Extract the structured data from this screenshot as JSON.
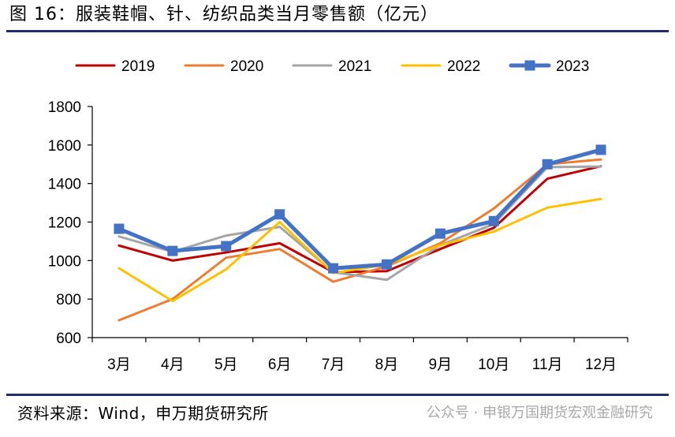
{
  "figure": {
    "title": "图 16：服装鞋帽、针、纺织品类当月零售额（亿元）",
    "source": "资料来源：Wind，申万期货研究所",
    "watermark": "公众号 · 申银万国期货宏观金融研究"
  },
  "chart_data": {
    "type": "line",
    "title": "",
    "xlabel": "",
    "ylabel": "",
    "categories": [
      "3月",
      "4月",
      "5月",
      "6月",
      "7月",
      "8月",
      "9月",
      "10月",
      "11月",
      "12月"
    ],
    "ylim": [
      600,
      1800
    ],
    "yticks": [
      600,
      800,
      1000,
      1200,
      1400,
      1600,
      1800
    ],
    "grid": false,
    "legend_position": "top",
    "series": [
      {
        "name": "2019",
        "color": "#c00000",
        "width": 3,
        "marker": null,
        "values": [
          1078,
          1000,
          1042,
          1090,
          940,
          945,
          1060,
          1170,
          1425,
          1490
        ]
      },
      {
        "name": "2020",
        "color": "#ed7d31",
        "width": 3,
        "marker": null,
        "values": [
          690,
          800,
          1015,
          1060,
          890,
          970,
          1090,
          1270,
          1500,
          1525
        ]
      },
      {
        "name": "2021",
        "color": "#a5a5a5",
        "width": 3,
        "marker": null,
        "values": [
          1125,
          1045,
          1130,
          1175,
          940,
          900,
          1080,
          1190,
          1485,
          1488
        ]
      },
      {
        "name": "2022",
        "color": "#ffc000",
        "width": 3,
        "marker": null,
        "values": [
          960,
          790,
          955,
          1200,
          935,
          980,
          1080,
          1150,
          1275,
          1320
        ]
      },
      {
        "name": "2023",
        "color": "#4472c4",
        "width": 5,
        "marker": "square",
        "values": [
          1165,
          1050,
          1075,
          1240,
          960,
          980,
          1140,
          1205,
          1500,
          1575
        ]
      }
    ]
  }
}
